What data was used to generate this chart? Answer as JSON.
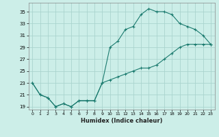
{
  "xlabel": "Humidex (Indice chaleur)",
  "bg_color": "#cceee8",
  "grid_color": "#aad4ce",
  "line_color": "#1a7a6e",
  "xlim": [
    -0.5,
    23.5
  ],
  "ylim": [
    18.5,
    36.5
  ],
  "xticks": [
    0,
    1,
    2,
    3,
    4,
    5,
    6,
    7,
    8,
    9,
    10,
    11,
    12,
    13,
    14,
    15,
    16,
    17,
    18,
    19,
    20,
    21,
    22,
    23
  ],
  "yticks": [
    19,
    21,
    23,
    25,
    27,
    29,
    31,
    33,
    35
  ],
  "line1_x": [
    0,
    1,
    2,
    3,
    4,
    5,
    6,
    7,
    8,
    9,
    10,
    11,
    12,
    13,
    14,
    15,
    16,
    17,
    18,
    19,
    20,
    21,
    22,
    23
  ],
  "line1_y": [
    23,
    21,
    20.5,
    19,
    19.5,
    19,
    20,
    20,
    20,
    23,
    29,
    30,
    32,
    32.5,
    34.5,
    35.5,
    35,
    35,
    34.5,
    33,
    32.5,
    32,
    31,
    29.5
  ],
  "line2_x": [
    0,
    1,
    2,
    3,
    4,
    5,
    6,
    7,
    8,
    9,
    10,
    11,
    12,
    13,
    14,
    15,
    16,
    17,
    18,
    19,
    20,
    21,
    22,
    23
  ],
  "line2_y": [
    23,
    21,
    20.5,
    19,
    19.5,
    19,
    20,
    20,
    20,
    23,
    23.5,
    24,
    24.5,
    25,
    25.5,
    25.5,
    26,
    27,
    28,
    29,
    29.5,
    29.5,
    29.5,
    29.5
  ]
}
